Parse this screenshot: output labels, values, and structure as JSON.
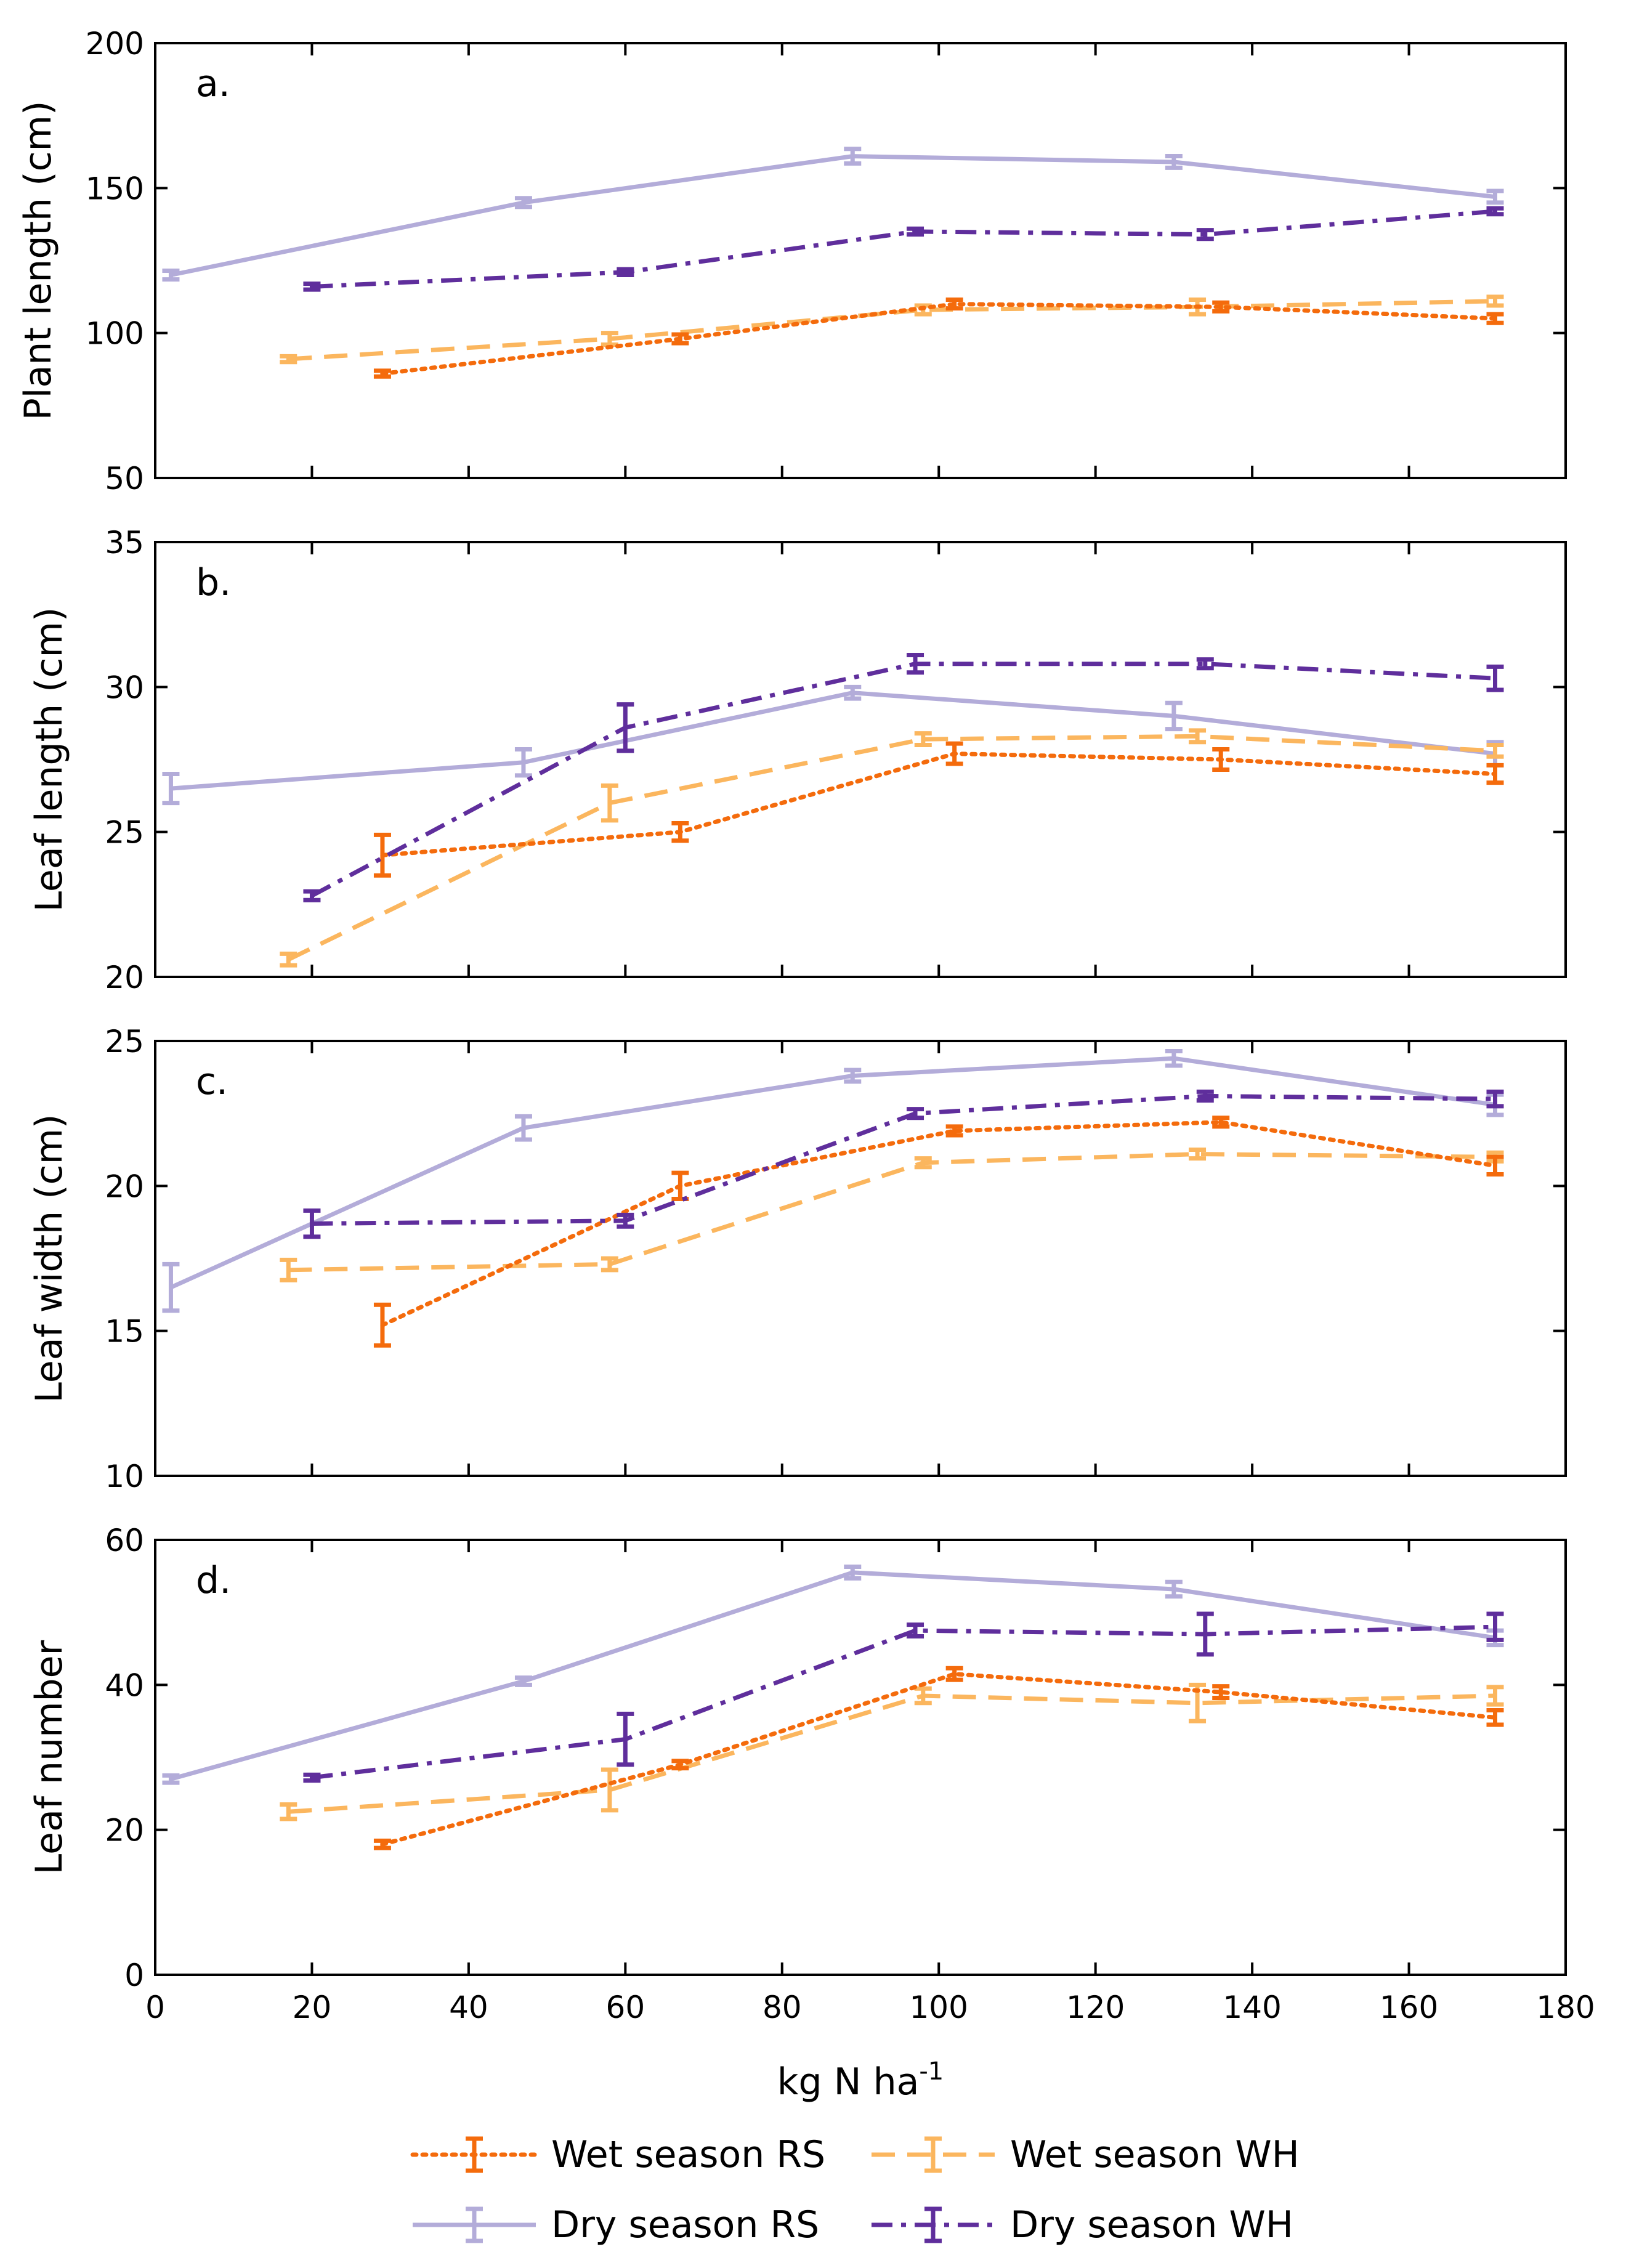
{
  "chart_data": [
    {
      "type": "line",
      "panel_label": "a.",
      "ylabel": "Plant length (cm)",
      "xlabel": "",
      "xlim": [
        0,
        180
      ],
      "ylim": [
        50,
        200
      ],
      "yticks": [
        50,
        100,
        150,
        200
      ],
      "series": [
        {
          "name": "Wet season RS",
          "x": [
            29,
            67,
            102,
            136,
            171
          ],
          "y": [
            86,
            98,
            110,
            109,
            105
          ],
          "err": [
            1,
            1.5,
            1.5,
            1.5,
            1.5
          ]
        },
        {
          "name": "Wet season WH",
          "x": [
            17,
            58,
            98,
            133,
            171
          ],
          "y": [
            91,
            98,
            108,
            109,
            111
          ],
          "err": [
            1,
            2,
            1.5,
            2.5,
            1.5
          ]
        },
        {
          "name": "Dry season RS",
          "x": [
            2,
            47,
            89,
            130,
            171
          ],
          "y": [
            120,
            145,
            161,
            159,
            147
          ],
          "err": [
            1.5,
            1.5,
            2.5,
            2,
            2
          ]
        },
        {
          "name": "Dry season WH",
          "x": [
            20,
            60,
            97,
            134,
            171
          ],
          "y": [
            116,
            121,
            135,
            134,
            142
          ],
          "err": [
            1,
            1,
            1,
            1.5,
            1
          ]
        }
      ]
    },
    {
      "type": "line",
      "panel_label": "b.",
      "ylabel": "Leaf length (cm)",
      "xlabel": "",
      "xlim": [
        0,
        180
      ],
      "ylim": [
        20,
        35
      ],
      "yticks": [
        20,
        25,
        30,
        35
      ],
      "series": [
        {
          "name": "Wet season RS",
          "x": [
            29,
            67,
            102,
            136,
            171
          ],
          "y": [
            24.2,
            25.0,
            27.7,
            27.5,
            27.0
          ],
          "err": [
            0.7,
            0.3,
            0.35,
            0.35,
            0.3
          ]
        },
        {
          "name": "Wet season WH",
          "x": [
            17,
            58,
            98,
            133,
            171
          ],
          "y": [
            20.6,
            26.0,
            28.2,
            28.3,
            27.8
          ],
          "err": [
            0.2,
            0.6,
            0.2,
            0.2,
            0.2
          ]
        },
        {
          "name": "Dry season RS",
          "x": [
            2,
            47,
            89,
            130,
            171
          ],
          "y": [
            26.5,
            27.4,
            29.8,
            29.0,
            27.7
          ],
          "err": [
            0.5,
            0.45,
            0.2,
            0.45,
            0.4
          ]
        },
        {
          "name": "Dry season WH",
          "x": [
            20,
            60,
            97,
            134,
            171
          ],
          "y": [
            22.8,
            28.6,
            30.8,
            30.8,
            30.3
          ],
          "err": [
            0.15,
            0.8,
            0.3,
            0.15,
            0.4
          ]
        }
      ]
    },
    {
      "type": "line",
      "panel_label": "c.",
      "ylabel": "Leaf width (cm)",
      "xlabel": "",
      "xlim": [
        0,
        180
      ],
      "ylim": [
        10,
        25
      ],
      "yticks": [
        10,
        15,
        20,
        25
      ],
      "series": [
        {
          "name": "Wet season RS",
          "x": [
            29,
            67,
            102,
            136,
            171
          ],
          "y": [
            15.2,
            20.0,
            21.9,
            22.2,
            20.7
          ],
          "err": [
            0.7,
            0.45,
            0.15,
            0.15,
            0.3
          ]
        },
        {
          "name": "Wet season WH",
          "x": [
            17,
            58,
            98,
            133,
            171
          ],
          "y": [
            17.1,
            17.3,
            20.8,
            21.1,
            21.0
          ],
          "err": [
            0.35,
            0.2,
            0.15,
            0.15,
            0.15
          ]
        },
        {
          "name": "Dry season RS",
          "x": [
            2,
            47,
            89,
            130,
            171
          ],
          "y": [
            16.5,
            22.0,
            23.8,
            24.4,
            22.8
          ],
          "err": [
            0.8,
            0.4,
            0.2,
            0.25,
            0.35
          ]
        },
        {
          "name": "Dry season WH",
          "x": [
            20,
            60,
            97,
            134,
            171
          ],
          "y": [
            18.7,
            18.8,
            22.5,
            23.1,
            23.0
          ],
          "err": [
            0.45,
            0.2,
            0.15,
            0.15,
            0.25
          ]
        }
      ]
    },
    {
      "type": "line",
      "panel_label": "d.",
      "ylabel": "Leaf number",
      "xlabel": "kg N ha",
      "xlabel_superscript": "-1",
      "xlim": [
        0,
        180
      ],
      "ylim": [
        0,
        60
      ],
      "yticks": [
        0,
        20,
        40,
        60
      ],
      "xticks": [
        0,
        20,
        40,
        60,
        80,
        100,
        120,
        140,
        160,
        180
      ],
      "series": [
        {
          "name": "Wet season RS",
          "x": [
            29,
            67,
            102,
            136,
            171
          ],
          "y": [
            18,
            29,
            41.5,
            39,
            35.5
          ],
          "err": [
            0.5,
            0.5,
            0.8,
            0.8,
            1
          ]
        },
        {
          "name": "Wet season WH",
          "x": [
            17,
            58,
            98,
            133,
            171
          ],
          "y": [
            22.5,
            25.5,
            38.5,
            37.5,
            38.5
          ],
          "err": [
            1,
            2.8,
            1,
            2.5,
            1.2
          ]
        },
        {
          "name": "Dry season RS",
          "x": [
            2,
            47,
            89,
            130,
            171
          ],
          "y": [
            27,
            40.5,
            55.5,
            53.2,
            46.5
          ],
          "err": [
            0.5,
            0.5,
            0.8,
            1,
            1
          ]
        },
        {
          "name": "Dry season WH",
          "x": [
            20,
            60,
            97,
            134,
            171
          ],
          "y": [
            27.2,
            32.5,
            47.5,
            47,
            48
          ],
          "err": [
            0.4,
            3.5,
            0.8,
            2.8,
            1.8
          ]
        }
      ]
    }
  ],
  "legend": [
    {
      "name": "Wet season RS",
      "color": "#f46b0c",
      "dash": "dotted"
    },
    {
      "name": "Wet season WH",
      "color": "#fbb65e",
      "dash": "dashed"
    },
    {
      "name": "Dry season RS",
      "color": "#b3acd9",
      "dash": "solid"
    },
    {
      "name": "Dry season WH",
      "color": "#5f2e9c",
      "dash": "dashdot"
    }
  ]
}
